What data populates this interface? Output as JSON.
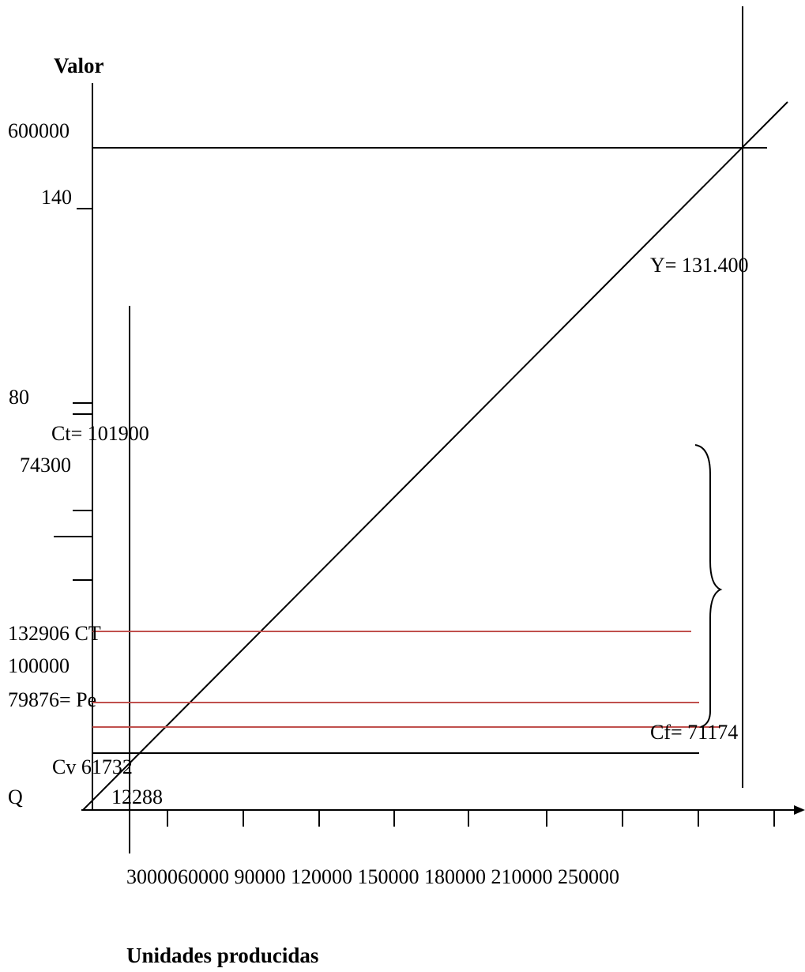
{
  "title_y_axis": "Valor",
  "title_x_axis": "Unidades producidas",
  "y_labels": {
    "v600000": "600000",
    "v140": "140",
    "v80": "80",
    "v74300": "74300",
    "v132906": "132906 CT",
    "v100000": "100000",
    "v79876": "79876= Pe",
    "q": "Q"
  },
  "annotations": {
    "ct": "Ct= 101900",
    "y": "Y= 131.400",
    "cf": "Cf= 71174",
    "cv": "Cv 61732",
    "units": "12288"
  },
  "x_ticks_text": "3000060000 90000 120000 150000 180000 210000 250000",
  "colors": {
    "ink": "#000000",
    "red_line": "#c0504d"
  }
}
